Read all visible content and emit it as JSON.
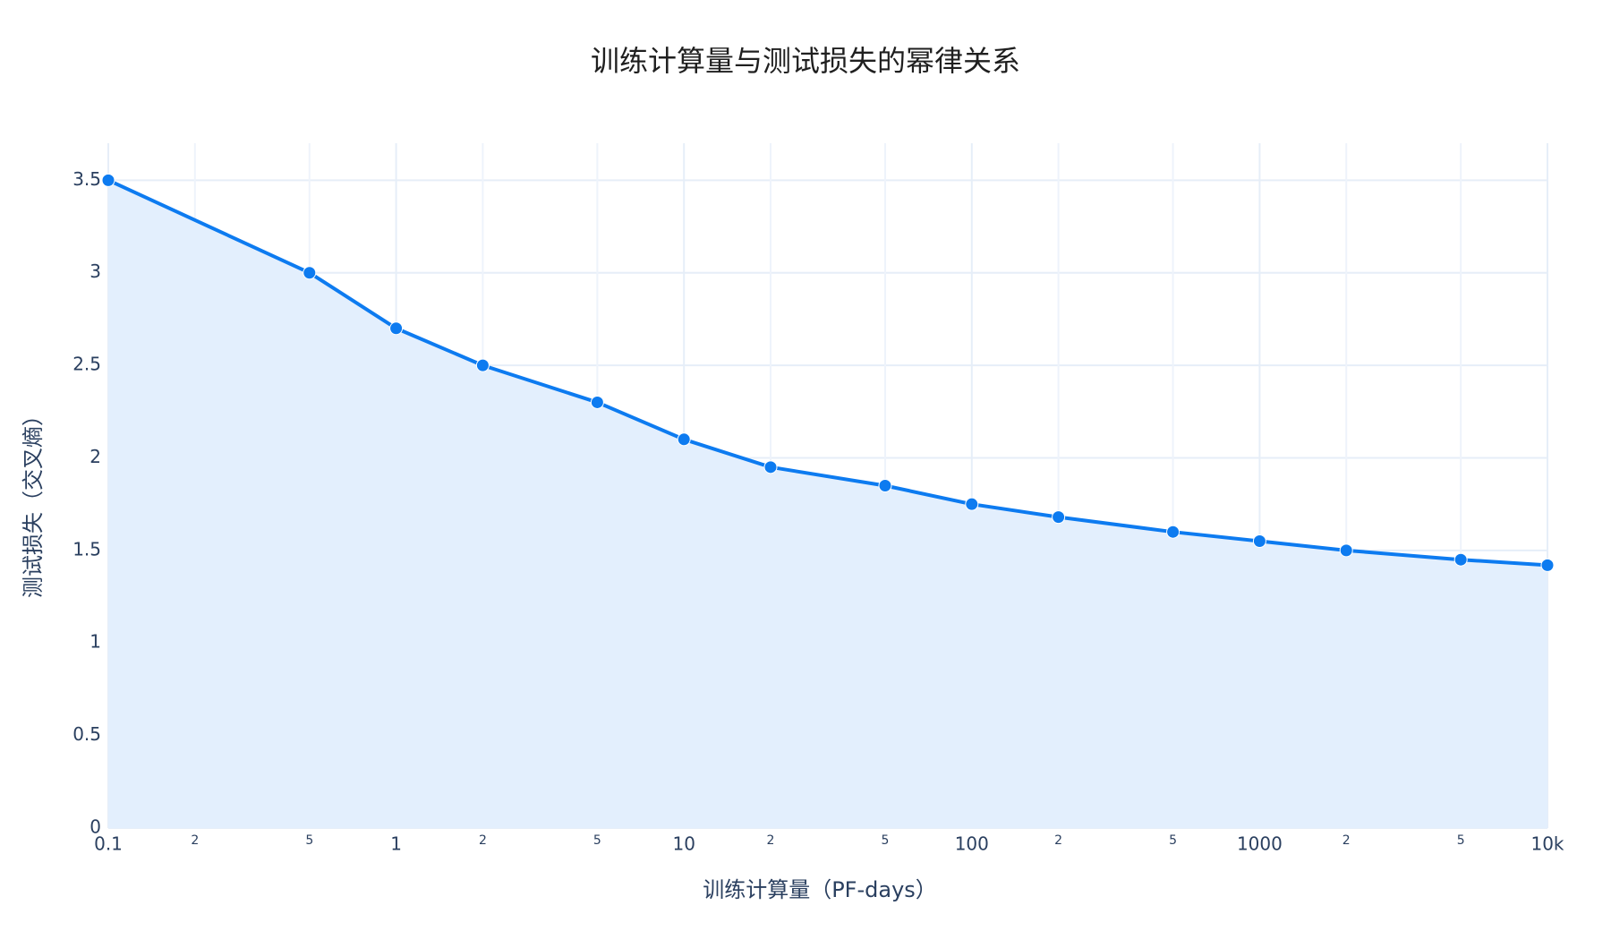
{
  "chart_data": {
    "type": "area",
    "title": "训练计算量与测试损失的幂律关系",
    "xlabel": "训练计算量（PF-days）",
    "ylabel": "测试损失（交叉熵）",
    "x_scale": "log",
    "xlim": [
      0.1,
      10000
    ],
    "ylim": [
      0,
      3.7
    ],
    "grid": true,
    "x_major_ticks": [
      {
        "value": 0.1,
        "label": "0.1"
      },
      {
        "value": 1,
        "label": "1"
      },
      {
        "value": 10,
        "label": "10"
      },
      {
        "value": 100,
        "label": "100"
      },
      {
        "value": 1000,
        "label": "1000"
      },
      {
        "value": 10000,
        "label": "10k"
      }
    ],
    "x_minor_ticks": [
      {
        "value": 0.2,
        "label": "2"
      },
      {
        "value": 0.5,
        "label": "5"
      },
      {
        "value": 2,
        "label": "2"
      },
      {
        "value": 5,
        "label": "5"
      },
      {
        "value": 20,
        "label": "2"
      },
      {
        "value": 50,
        "label": "5"
      },
      {
        "value": 200,
        "label": "2"
      },
      {
        "value": 500,
        "label": "5"
      },
      {
        "value": 2000,
        "label": "2"
      },
      {
        "value": 5000,
        "label": "5"
      }
    ],
    "y_ticks": [
      {
        "value": 0,
        "label": "0"
      },
      {
        "value": 0.5,
        "label": "0.5"
      },
      {
        "value": 1,
        "label": "1"
      },
      {
        "value": 1.5,
        "label": "1.5"
      },
      {
        "value": 2,
        "label": "2"
      },
      {
        "value": 2.5,
        "label": "2.5"
      },
      {
        "value": 3,
        "label": "3"
      },
      {
        "value": 3.5,
        "label": "3.5"
      }
    ],
    "series": [
      {
        "color": "#0d7bf0",
        "fill_color": "#e3effd",
        "points": [
          {
            "x": 0.1,
            "y": 3.5
          },
          {
            "x": 0.5,
            "y": 3.0
          },
          {
            "x": 1,
            "y": 2.7
          },
          {
            "x": 2,
            "y": 2.5
          },
          {
            "x": 5,
            "y": 2.3
          },
          {
            "x": 10,
            "y": 2.1
          },
          {
            "x": 20,
            "y": 1.95
          },
          {
            "x": 50,
            "y": 1.85
          },
          {
            "x": 100,
            "y": 1.75
          },
          {
            "x": 200,
            "y": 1.68
          },
          {
            "x": 500,
            "y": 1.6
          },
          {
            "x": 1000,
            "y": 1.55
          },
          {
            "x": 2000,
            "y": 1.5
          },
          {
            "x": 5000,
            "y": 1.45
          },
          {
            "x": 10000,
            "y": 1.42
          }
        ]
      }
    ]
  }
}
